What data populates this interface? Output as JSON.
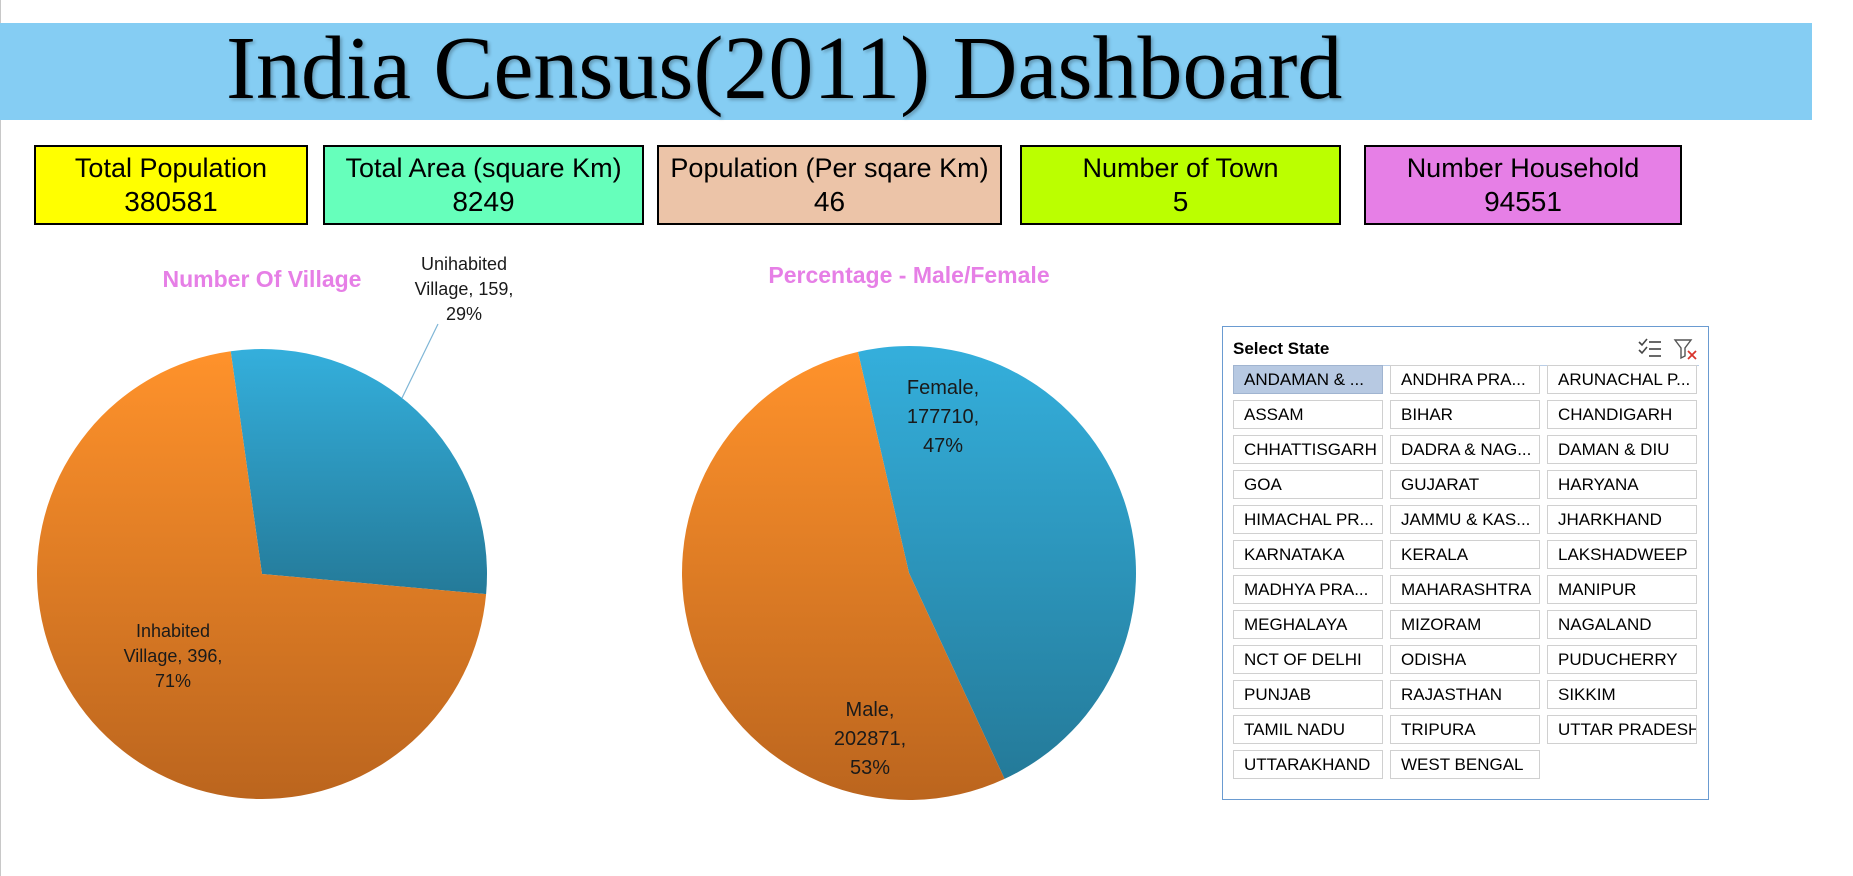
{
  "title": "India Census(2011) Dashboard",
  "kpis": [
    {
      "label": "Total Population",
      "value": "380581",
      "color": "#ffff00"
    },
    {
      "label": "Total Area (square Km)",
      "value": "8249",
      "color": "#66ffbb"
    },
    {
      "label": "Population (Per sqare Km)",
      "value": "46",
      "color": "#ecc4a8"
    },
    {
      "label": "Number of Town",
      "value": "5",
      "color": "#bbff00"
    },
    {
      "label": "Number Household",
      "value": "94551",
      "color": "#e67fe6"
    }
  ],
  "chart_data": [
    {
      "type": "pie",
      "title": "Number Of Village",
      "title_color": "#e67fe6",
      "slices": [
        {
          "name": "Unihabited Village",
          "value": 159,
          "percent": 29,
          "color": "#2e9cc4",
          "label_lines": [
            "Unihabited",
            "Village, 159,",
            "29%"
          ]
        },
        {
          "name": "Inhabited Village",
          "value": 396,
          "percent": 71,
          "color": "#f08226",
          "label_lines": [
            "Inhabited",
            "Village, 396,",
            "71%"
          ]
        }
      ]
    },
    {
      "type": "pie",
      "title": "Percentage - Male/Female",
      "title_color": "#e67fe6",
      "slices": [
        {
          "name": "Female",
          "value": 177710,
          "percent": 47,
          "color": "#2e9cc4",
          "label_lines": [
            "Female,",
            "177710,",
            "47%"
          ]
        },
        {
          "name": "Male",
          "value": 202871,
          "percent": 53,
          "color": "#f08226",
          "label_lines": [
            "Male,",
            "202871,",
            "53%"
          ]
        }
      ]
    }
  ],
  "slicer": {
    "title": "Select State",
    "selected": "ANDAMAN & ...",
    "items": [
      "ANDAMAN & ...",
      "ANDHRA PRA...",
      "ARUNACHAL P...",
      "ASSAM",
      "BIHAR",
      "CHANDIGARH",
      "CHHATTISGARH",
      "DADRA & NAG...",
      "DAMAN & DIU",
      "GOA",
      "GUJARAT",
      "HARYANA",
      "HIMACHAL PR...",
      "JAMMU & KAS...",
      "JHARKHAND",
      "KARNATAKA",
      "KERALA",
      "LAKSHADWEEP",
      "MADHYA PRA...",
      "MAHARASHTRA",
      "MANIPUR",
      "MEGHALAYA",
      "MIZORAM",
      "NAGALAND",
      "NCT OF DELHI",
      "ODISHA",
      "PUDUCHERRY",
      "PUNJAB",
      "RAJASTHAN",
      "SIKKIM",
      "TAMIL NADU",
      "TRIPURA",
      "UTTAR PRADESH",
      "UTTARAKHAND",
      "WEST BENGAL"
    ],
    "icons": [
      "multi-select-icon",
      "clear-filter-icon"
    ]
  }
}
